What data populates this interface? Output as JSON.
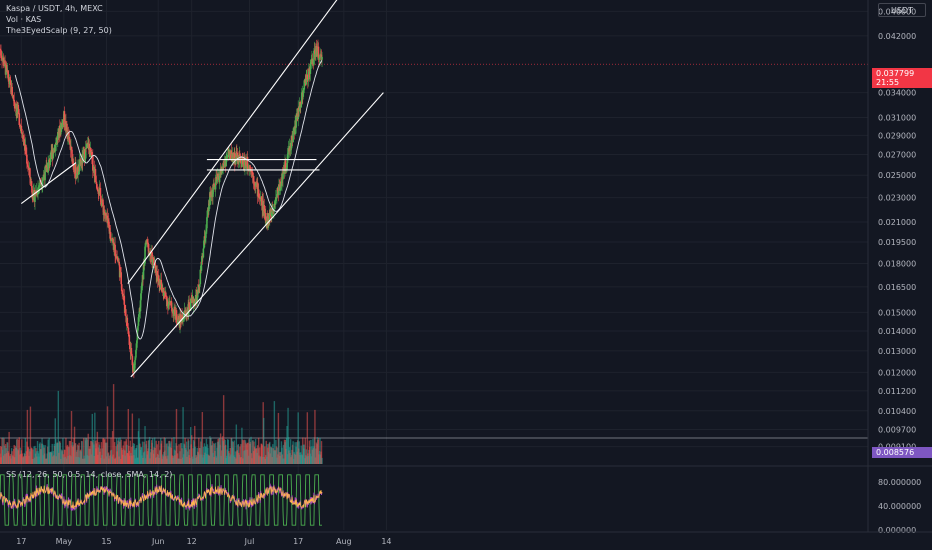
{
  "header": {
    "symbol_line": "Kaspa / USDT, 4h, MEXC",
    "volume_line": "Vol · KAS",
    "indicator_line": "The3EyedScalp (9, 27, 50)",
    "currency": "USDT"
  },
  "price_axis": {
    "labels": [
      "0.046000",
      "0.042000",
      "0.034000",
      "0.031000",
      "0.029000",
      "0.027000",
      "0.025000",
      "0.023000",
      "0.021000",
      "0.019500",
      "0.018000",
      "0.016500",
      "0.015000",
      "0.014000",
      "0.013000",
      "0.012000",
      "0.011200",
      "0.010400",
      "0.009700",
      "0.009100"
    ],
    "current_price": "0.037799",
    "countdown": "21:55",
    "volume_level": "0.008576"
  },
  "oscillator": {
    "legend": "SS (12, 26, 50, 0.5, 14, close, SMA, 14, 2)",
    "axis_labels": [
      "80.000000",
      "40.000000",
      "0.000000"
    ]
  },
  "time_axis": {
    "labels": [
      "17",
      "May",
      "15",
      "Jun",
      "12",
      "Jul",
      "17",
      "Aug",
      "14"
    ]
  },
  "colors": {
    "background": "#131722",
    "up": "#26a69a",
    "up_bright": "#4caf50",
    "down": "#ef5350",
    "price_tag": "#f23645",
    "volume_tag": "#7e57c2",
    "trendline": "#ffffff"
  },
  "chart_data": {
    "type": "candlestick",
    "symbol": "KAS/USDT",
    "timeframe": "4h",
    "exchange": "MEXC",
    "x_ticks": [
      "17",
      "May",
      "15",
      "Jun",
      "12",
      "Jul",
      "17",
      "Aug",
      "14"
    ],
    "price_path": [
      {
        "x": "Apr 10",
        "y": 0.04
      },
      {
        "x": "Apr 17",
        "y": 0.03
      },
      {
        "x": "Apr 21",
        "y": 0.023
      },
      {
        "x": "Apr 26",
        "y": 0.026
      },
      {
        "x": "May 1",
        "y": 0.031
      },
      {
        "x": "May 5",
        "y": 0.025
      },
      {
        "x": "May 9",
        "y": 0.028
      },
      {
        "x": "May 14",
        "y": 0.022
      },
      {
        "x": "May 19",
        "y": 0.018
      },
      {
        "x": "May 24",
        "y": 0.012
      },
      {
        "x": "May 28",
        "y": 0.0195
      },
      {
        "x": "Jun 3",
        "y": 0.016
      },
      {
        "x": "Jun 8",
        "y": 0.0145
      },
      {
        "x": "Jun 14",
        "y": 0.016
      },
      {
        "x": "Jun 18",
        "y": 0.023
      },
      {
        "x": "Jun 24",
        "y": 0.027
      },
      {
        "x": "Jul 1",
        "y": 0.026
      },
      {
        "x": "Jul 7",
        "y": 0.021
      },
      {
        "x": "Jul 12",
        "y": 0.025
      },
      {
        "x": "Jul 16",
        "y": 0.03
      },
      {
        "x": "Jul 19",
        "y": 0.035
      },
      {
        "x": "Jul 23",
        "y": 0.04
      },
      {
        "x": "Jul 25",
        "y": 0.0378
      }
    ],
    "ylim": [
      0.0085,
      0.048
    ],
    "y_scale": "log",
    "grid": true,
    "legend": "top-left",
    "current_price": 0.037799
  }
}
